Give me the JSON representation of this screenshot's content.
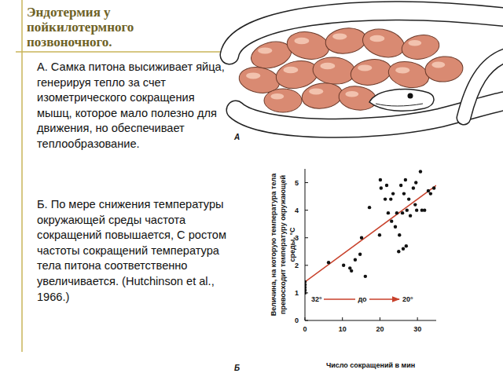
{
  "slide": {
    "title": "Эндотермия у пойкилотермного позвоночного.",
    "paragraphs": [
      "А. Самка питона высиживает яйца, генерируя тепло за счет изометрического сокращения мышц, которое мало полезно для движения, но обеспечивает теплообразование.",
      "Б. По мере снижения температуры окружающей среды частота сокращений повышается, С ростом частоты сокращений температура тела питона соответственно увеличивается. (Hutchinson et al., 1966.)"
    ],
    "panel_labels": [
      "А",
      "Б"
    ]
  },
  "chart_data": {
    "type": "scatter",
    "xlabel": "Число сокращений в мин",
    "ylabel": "Величина, на которую температура тела превосходит температуру окружающей среды, °С",
    "annotations": [
      "32°",
      "до",
      "20°"
    ],
    "x": [
      0,
      0,
      0,
      0,
      0,
      6.3,
      10.3,
      12,
      12.4,
      13.4,
      14.7,
      15.1,
      16.1,
      17.2,
      19.9,
      20.1,
      20.3,
      21.4,
      21.8,
      22.2,
      22.9,
      23.1,
      23.5,
      24.1,
      24.5,
      25,
      25.2,
      25.6,
      26,
      26.2,
      26.4,
      26.8,
      27,
      27.2,
      27.7,
      28.1,
      28.9,
      29.4,
      29.6,
      29.8,
      30.8,
      31.2,
      31.9,
      32.9,
      33.5,
      34.4
    ],
    "values": [
      1.2,
      1.3,
      1.1,
      1.0,
      1.4,
      2.1,
      2.0,
      1.9,
      1.8,
      2.2,
      2.4,
      3.0,
      1.6,
      4.1,
      3.1,
      5.1,
      4.8,
      4.4,
      4.9,
      3.9,
      4.4,
      3.6,
      4.6,
      3.4,
      3.9,
      2.5,
      3.1,
      4.9,
      3.9,
      2.6,
      4.6,
      5.1,
      2.7,
      4.0,
      4.4,
      3.8,
      4.8,
      4.2,
      5.0,
      4.0,
      5.4,
      4.0,
      4.0,
      4.7,
      4.6,
      4.8
    ],
    "color": "#111111",
    "marker": "circle",
    "trend_line": {
      "x": [
        0,
        35
      ],
      "values": [
        1.4,
        4.9
      ],
      "color": "#c8412b"
    },
    "xlim": [
      0,
      35
    ],
    "xticks": [
      0,
      10,
      20,
      30
    ],
    "ylim": [
      0,
      5.5
    ],
    "yticks": [
      0,
      1,
      2,
      3,
      4,
      5
    ],
    "grid": false
  }
}
